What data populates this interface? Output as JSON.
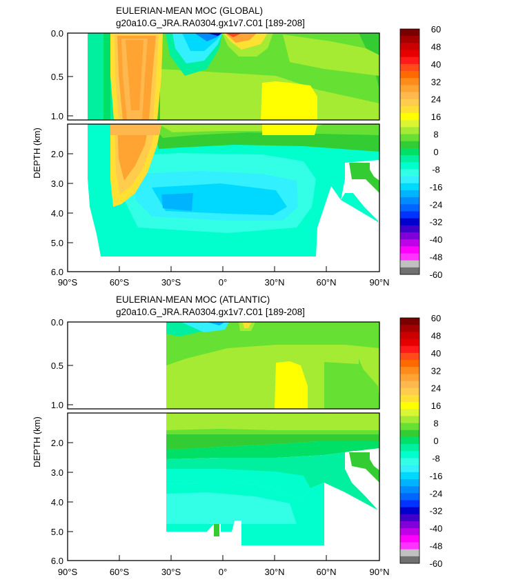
{
  "chart_data": [
    {
      "type": "heatmap",
      "title_line1": "EULERIAN-MEAN MOC (GLOBAL)",
      "title_line2": "g20a10.G_JRA.RA0304.gx1v7.C01 [189-208]",
      "ylabel": "DEPTH (km)",
      "x_ticks": [
        "90°S",
        "60°S",
        "30°S",
        "0°",
        "30°N",
        "60°N",
        "90°N"
      ],
      "x_values": [
        -90,
        -60,
        -30,
        0,
        30,
        60,
        90
      ],
      "y_ticks_upper": [
        "0.0",
        "0.5",
        "1.0"
      ],
      "y_values_upper": [
        0.0,
        0.5,
        1.0
      ],
      "y_ticks_lower": [
        "2.0",
        "3.0",
        "4.0",
        "5.0",
        "6.0"
      ],
      "y_values_lower": [
        2.0,
        3.0,
        4.0,
        5.0,
        6.0
      ],
      "upper_ylim": [
        0.0,
        1.0
      ],
      "lower_ylim": [
        1.0,
        6.0
      ],
      "xlim": [
        -90,
        90
      ]
    },
    {
      "type": "heatmap",
      "title_line1": "EULERIAN-MEAN MOC (ATLANTIC)",
      "title_line2": "g20a10.G_JRA.RA0304.gx1v7.C01 [189-208]",
      "ylabel": "DEPTH (km)",
      "x_ticks": [
        "90°S",
        "60°S",
        "30°S",
        "0°",
        "30°N",
        "60°N",
        "90°N"
      ],
      "x_values": [
        -90,
        -60,
        -30,
        0,
        30,
        60,
        90
      ],
      "y_ticks_upper": [
        "0.0",
        "0.5",
        "1.0"
      ],
      "y_values_upper": [
        0.0,
        0.5,
        1.0
      ],
      "y_ticks_lower": [
        "2.0",
        "3.0",
        "4.0",
        "5.0",
        "6.0"
      ],
      "y_values_lower": [
        2.0,
        3.0,
        4.0,
        5.0,
        6.0
      ],
      "upper_ylim": [
        0.0,
        1.0
      ],
      "lower_ylim": [
        1.0,
        6.0
      ],
      "xlim": [
        -90,
        90
      ]
    }
  ],
  "colorbar": {
    "labels": [
      "60",
      "48",
      "40",
      "32",
      "24",
      "16",
      "8",
      "0",
      "-8",
      "-16",
      "-24",
      "-32",
      "-40",
      "-48",
      "-60"
    ],
    "label_values": [
      60,
      48,
      40,
      32,
      24,
      16,
      8,
      0,
      -8,
      -16,
      -24,
      -32,
      -40,
      -48,
      -60
    ],
    "colors": [
      "#7a0000",
      "#a50000",
      "#cc0000",
      "#e60000",
      "#ff1a1a",
      "#ff4a1a",
      "#ff6a00",
      "#ff8c1a",
      "#ffa333",
      "#ffb84d",
      "#ffcc4d",
      "#ffe033",
      "#ffff00",
      "#d9f533",
      "#a6eb33",
      "#66e033",
      "#33cc33",
      "#00e066",
      "#00f0a0",
      "#00ffcc",
      "#33ffe6",
      "#33f0ff",
      "#00d9ff",
      "#00b3ff",
      "#008cff",
      "#0066ff",
      "#0033ff",
      "#0000cc",
      "#4000cc",
      "#8000d9",
      "#c000e6",
      "#ff00ff",
      "#ff33ff",
      "#c0c0c0",
      "#707070"
    ]
  },
  "colors": {
    "upwelling_yellow": "#ffff00",
    "light_green": "#a6eb33",
    "green": "#33cc33",
    "mint": "#00f0a0",
    "cyan": "#33f0ff",
    "sky": "#00b3ff",
    "orange": "#ffa333"
  }
}
